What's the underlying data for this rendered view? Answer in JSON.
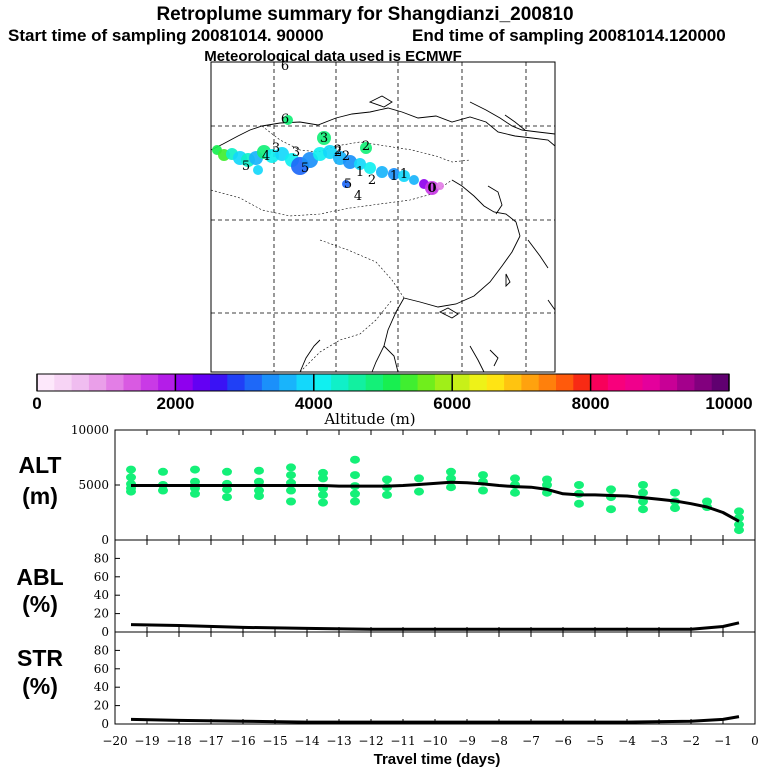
{
  "header": {
    "title": "Retroplume summary for Shangdianzi_200810",
    "start_label": "Start time of sampling 20081014. 90000",
    "end_label": "End time of sampling 20081014.120000",
    "met_label": "Meteorological data used is ECMWF"
  },
  "colorbar": {
    "tick_labels": [
      "0",
      "2000",
      "4000",
      "6000",
      "8000",
      "10000"
    ],
    "label": "Altitude (m)",
    "range": [
      0,
      10000
    ],
    "colors": [
      "#fde8fb",
      "#f7d4f5",
      "#f0bdf0",
      "#ea9fe9",
      "#e37ee6",
      "#d95ae2",
      "#c93ae6",
      "#b41de8",
      "#8f00ee",
      "#6400f3",
      "#3a12f5",
      "#2040f6",
      "#1e68f8",
      "#1b90fa",
      "#19b4fb",
      "#14d8fb",
      "#10f0f0",
      "#10f0c8",
      "#12f0a0",
      "#14f078",
      "#18ef50",
      "#40ee30",
      "#70ee1c",
      "#a0ef18",
      "#c8f018",
      "#eef218",
      "#ffe414",
      "#ffc410",
      "#ffa20e",
      "#ff800c",
      "#ff5a0c",
      "#f82a14",
      "#f8005a",
      "#f8007c",
      "#f0008c",
      "#e4009c",
      "#c80096",
      "#a4008c",
      "#82007e",
      "#600070"
    ]
  },
  "map": {
    "trajectory_labels": [
      "6",
      "6",
      "5",
      "4",
      "3",
      "2",
      "3",
      "5",
      "2",
      "2",
      "3",
      "1",
      "2",
      "1",
      "4",
      "5",
      "2",
      "1",
      "0"
    ]
  },
  "chart_data": [
    {
      "type": "line",
      "name": "ALT",
      "ylabel": "ALT\n(m)",
      "ylabel_lines": [
        "ALT",
        "(m)"
      ],
      "ylim": [
        0,
        10000
      ],
      "yticks": [
        "10000",
        "5000",
        "0"
      ],
      "xlim": [
        -20,
        0
      ],
      "x": [
        -19.5,
        -19,
        -18.5,
        -18,
        -17.5,
        -17,
        -16.5,
        -16,
        -15.5,
        -15,
        -14.5,
        -14,
        -13.5,
        -13,
        -12.5,
        -12,
        -11.5,
        -11,
        -10.5,
        -10,
        -9.5,
        -9,
        -8.5,
        -8,
        -7.5,
        -7,
        -6.5,
        -6,
        -5.5,
        -5,
        -4.5,
        -4,
        -3.5,
        -3,
        -2.5,
        -2,
        -1.5,
        -1,
        -0.5
      ],
      "mean": [
        4950,
        4950,
        4950,
        4950,
        4950,
        4950,
        4950,
        4950,
        4950,
        4950,
        4950,
        4950,
        4950,
        4900,
        4900,
        4900,
        4900,
        4950,
        5050,
        5150,
        5250,
        5200,
        5100,
        4950,
        4850,
        4800,
        4600,
        4200,
        4100,
        4100,
        4050,
        4000,
        3850,
        3700,
        3550,
        3300,
        3000,
        2500,
        1700
      ],
      "scatter": [
        [
          -19.5,
          4400
        ],
        [
          -19.5,
          4700
        ],
        [
          -19.5,
          5100
        ],
        [
          -19.5,
          5700
        ],
        [
          -19.5,
          6400
        ],
        [
          -18.5,
          4500
        ],
        [
          -18.5,
          5000
        ],
        [
          -18.5,
          6200
        ],
        [
          -17.5,
          4200
        ],
        [
          -17.5,
          4700
        ],
        [
          -17.5,
          5300
        ],
        [
          -17.5,
          6400
        ],
        [
          -16.5,
          3900
        ],
        [
          -16.5,
          4600
        ],
        [
          -16.5,
          5100
        ],
        [
          -16.5,
          6200
        ],
        [
          -15.5,
          4000
        ],
        [
          -15.5,
          4500
        ],
        [
          -15.5,
          5300
        ],
        [
          -15.5,
          6300
        ],
        [
          -14.5,
          3500
        ],
        [
          -14.5,
          4500
        ],
        [
          -14.5,
          5200
        ],
        [
          -14.5,
          5900
        ],
        [
          -14.5,
          6600
        ],
        [
          -13.5,
          3400
        ],
        [
          -13.5,
          4100
        ],
        [
          -13.5,
          4700
        ],
        [
          -13.5,
          5600
        ],
        [
          -13.5,
          6100
        ],
        [
          -12.5,
          3500
        ],
        [
          -12.5,
          4200
        ],
        [
          -12.5,
          4900
        ],
        [
          -12.5,
          5900
        ],
        [
          -12.5,
          7300
        ],
        [
          -11.5,
          4100
        ],
        [
          -11.5,
          4800
        ],
        [
          -11.5,
          5500
        ],
        [
          -10.5,
          4400
        ],
        [
          -10.5,
          5600
        ],
        [
          -9.5,
          4800
        ],
        [
          -9.5,
          5600
        ],
        [
          -9.5,
          6200
        ],
        [
          -8.5,
          4500
        ],
        [
          -8.5,
          5300
        ],
        [
          -8.5,
          5900
        ],
        [
          -7.5,
          4300
        ],
        [
          -7.5,
          5000
        ],
        [
          -7.5,
          5600
        ],
        [
          -6.5,
          4300
        ],
        [
          -6.5,
          5000
        ],
        [
          -6.5,
          5500
        ],
        [
          -5.5,
          3300
        ],
        [
          -5.5,
          4200
        ],
        [
          -5.5,
          5000
        ],
        [
          -4.5,
          2800
        ],
        [
          -4.5,
          3900
        ],
        [
          -4.5,
          4600
        ],
        [
          -3.5,
          2800
        ],
        [
          -3.5,
          3500
        ],
        [
          -3.5,
          4300
        ],
        [
          -3.5,
          5000
        ],
        [
          -2.5,
          2900
        ],
        [
          -2.5,
          3500
        ],
        [
          -2.5,
          4300
        ],
        [
          -1.5,
          3000
        ],
        [
          -1.5,
          3500
        ],
        [
          -0.5,
          900
        ],
        [
          -0.5,
          1400
        ],
        [
          -0.5,
          2000
        ],
        [
          -0.5,
          2600
        ]
      ]
    },
    {
      "type": "line",
      "name": "ABL",
      "ylabel": "ABL\n(%)",
      "ylabel_lines": [
        "ABL",
        "(%)"
      ],
      "ylim": [
        0,
        100
      ],
      "yticks": [
        "80",
        "60",
        "40",
        "20",
        "0"
      ],
      "xlim": [
        -20,
        0
      ],
      "x": [
        -19.5,
        -18,
        -16,
        -14,
        -12,
        -10,
        -8,
        -6,
        -4,
        -2,
        -1,
        -0.5
      ],
      "mean": [
        8,
        7,
        5,
        4,
        3,
        3,
        3,
        3,
        3,
        3,
        6,
        10
      ]
    },
    {
      "type": "line",
      "name": "STR",
      "ylabel": "STR\n(%)",
      "ylabel_lines": [
        "STR",
        "(%)"
      ],
      "ylim": [
        0,
        100
      ],
      "yticks": [
        "80",
        "60",
        "40",
        "20",
        "0"
      ],
      "xlim": [
        -20,
        0
      ],
      "xticks": [
        "−20",
        "−19",
        "−18",
        "−17",
        "−16",
        "−15",
        "−14",
        "−13",
        "−12",
        "−11",
        "−10",
        "−9",
        "−8",
        "−7",
        "−6",
        "−5",
        "−4",
        "−3",
        "−2",
        "−1",
        "0"
      ],
      "xlabel": "Travel time (days)",
      "x": [
        -19.5,
        -18,
        -16,
        -14,
        -12,
        -10,
        -8,
        -6,
        -4,
        -2,
        -1,
        -0.5
      ],
      "mean": [
        5,
        4,
        3,
        2,
        2,
        2,
        2,
        2,
        2,
        3,
        5,
        8
      ]
    }
  ]
}
